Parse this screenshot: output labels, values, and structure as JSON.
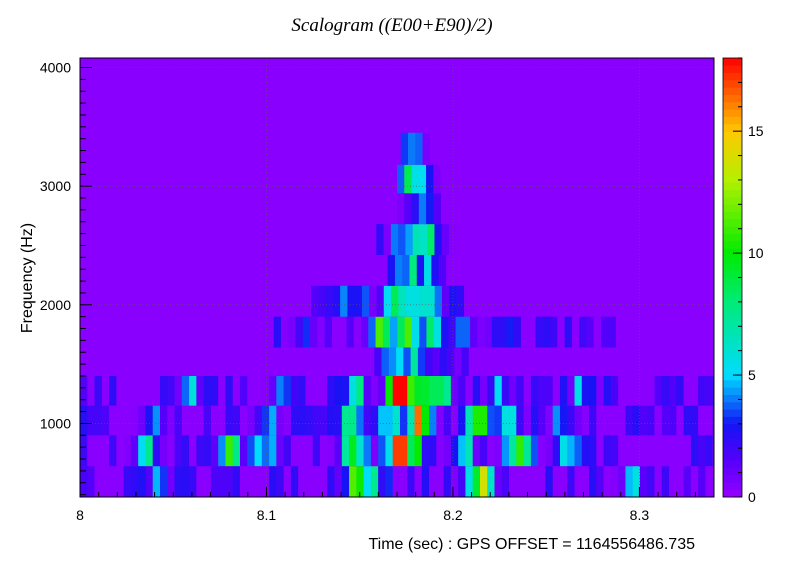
{
  "chart_data": {
    "type": "heatmap",
    "title": "Scalogram ((E00+E90)/2)",
    "xlabel": "Time (sec) : GPS OFFSET = 1164556486.735",
    "ylabel": "Frequency (Hz)",
    "xlim": [
      8.0,
      8.34
    ],
    "ylim": [
      380,
      4080
    ],
    "zlim": [
      0,
      18
    ],
    "x_ticks": [
      8,
      8.1,
      8.2,
      8.3
    ],
    "x_tick_labels": [
      "8",
      "8.1",
      "8.2",
      "8.3"
    ],
    "y_ticks": [
      1000,
      2000,
      3000,
      4000
    ],
    "y_tick_labels": [
      "1000",
      "2000",
      "3000",
      "4000"
    ],
    "colorbar_ticks": [
      0,
      5,
      10,
      15
    ],
    "colorbar_tick_labels": [
      "0",
      "5",
      "10",
      "15"
    ],
    "background_value": 0.3,
    "colormap": "rainbow (purple-blue-cyan-green-yellow-red)",
    "grid": true,
    "bands": [
      {
        "freq_range": [
          380,
          640
        ],
        "step": 0.0039,
        "t_range": [
          8.0,
          8.34
        ],
        "peaks": [
          [
            8.042,
            3.5
          ],
          [
            8.147,
            7.5
          ],
          [
            8.157,
            5
          ],
          [
            8.212,
            8
          ],
          [
            8.216,
            6
          ],
          [
            8.297,
            3
          ]
        ]
      },
      {
        "freq_range": [
          640,
          900
        ],
        "step": 0.0039,
        "t_range": [
          8.0,
          8.34
        ],
        "peaks": [
          [
            8.036,
            5.5
          ],
          [
            8.08,
            9.5
          ],
          [
            8.1,
            4
          ],
          [
            8.147,
            10
          ],
          [
            8.172,
            18
          ],
          [
            8.18,
            6
          ],
          [
            8.205,
            5
          ],
          [
            8.235,
            7.5
          ],
          [
            8.26,
            4
          ]
        ]
      },
      {
        "freq_range": [
          900,
          1150
        ],
        "step": 0.0039,
        "t_range": [
          8.0,
          8.34
        ],
        "peaks": [
          [
            8.04,
            3
          ],
          [
            8.1,
            3.5
          ],
          [
            8.147,
            8
          ],
          [
            8.167,
            5
          ],
          [
            8.181,
            13
          ],
          [
            8.215,
            11
          ],
          [
            8.23,
            6
          ],
          [
            8.26,
            3
          ]
        ]
      },
      {
        "freq_range": [
          1150,
          1400
        ],
        "step": 0.0039,
        "t_range": [
          8.0,
          8.34
        ],
        "peaks": [
          [
            8.06,
            3
          ],
          [
            8.11,
            3.5
          ],
          [
            8.147,
            6
          ],
          [
            8.171,
            15
          ],
          [
            8.182,
            5
          ],
          [
            8.192,
            9
          ],
          [
            8.225,
            4
          ],
          [
            8.27,
            3
          ]
        ]
      },
      {
        "freq_range": [
          1400,
          1640
        ],
        "step": 0.0039,
        "t_range": [
          8.15,
          8.21
        ],
        "peaks": [
          [
            8.168,
            2.5
          ],
          [
            8.18,
            5.5
          ],
          [
            8.195,
            2.5
          ]
        ]
      },
      {
        "freq_range": [
          1640,
          1900
        ],
        "step": 0.0039,
        "t_range": [
          8.1,
          8.285
        ],
        "peaks": [
          [
            8.12,
            2
          ],
          [
            8.162,
            9
          ],
          [
            8.176,
            8.5
          ],
          [
            8.19,
            6
          ],
          [
            8.205,
            4
          ],
          [
            8.225,
            2.5
          ]
        ]
      },
      {
        "freq_range": [
          1900,
          2160
        ],
        "step": 0.0039,
        "t_range": [
          8.12,
          8.205
        ],
        "peaks": [
          [
            8.147,
            3
          ],
          [
            8.167,
            5.5
          ],
          [
            8.178,
            6
          ],
          [
            8.19,
            3
          ]
        ]
      },
      {
        "freq_range": [
          2160,
          2420
        ],
        "step": 0.0039,
        "t_range": [
          8.165,
          8.195
        ],
        "peaks": [
          [
            8.176,
            4
          ],
          [
            8.184,
            3
          ]
        ]
      },
      {
        "freq_range": [
          2420,
          2680
        ],
        "step": 0.0039,
        "t_range": [
          8.155,
          8.207
        ],
        "peaks": [
          [
            8.173,
            3
          ],
          [
            8.18,
            7
          ],
          [
            8.188,
            5
          ]
        ]
      },
      {
        "freq_range": [
          2680,
          2940
        ],
        "step": 0.0039,
        "t_range": [
          8.17,
          8.19
        ],
        "peaks": [
          [
            8.18,
            2.5
          ]
        ]
      },
      {
        "freq_range": [
          2940,
          3180
        ],
        "step": 0.0039,
        "t_range": [
          8.17,
          8.19
        ],
        "peaks": [
          [
            8.176,
            6
          ],
          [
            8.183,
            2.5
          ]
        ]
      },
      {
        "freq_range": [
          3180,
          3450
        ],
        "step": 0.0039,
        "t_range": [
          8.172,
          8.186
        ],
        "peaks": [
          [
            8.178,
            2.5
          ]
        ]
      }
    ]
  }
}
